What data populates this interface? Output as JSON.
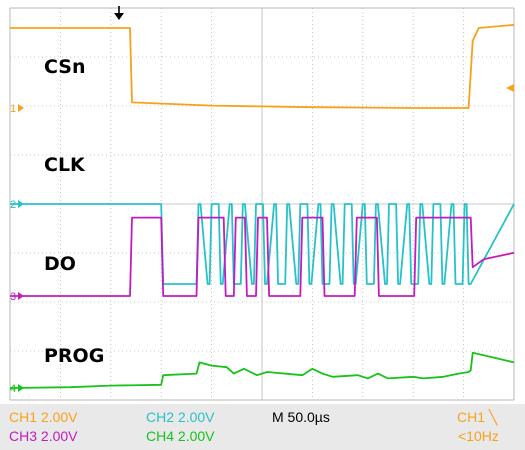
{
  "chart_data": {
    "type": "line",
    "title": "",
    "xlabel": "",
    "ylabel": "",
    "time_per_div_us": 50,
    "grid": true,
    "legend": "none",
    "x_range_us": [
      0,
      500
    ],
    "x_unit": "us",
    "y_unit": "V",
    "series": [
      {
        "name": "CSn",
        "channel": 1,
        "color": "#f7a21b",
        "volts_per_div": 2.0,
        "marker": "1",
        "x": [
          0,
          119,
          121,
          200,
          300,
          400,
          455,
          459,
          465,
          500
        ],
        "y": [
          5.0,
          5.0,
          0.35,
          0.15,
          0.05,
          0.0,
          0.0,
          4.2,
          5.0,
          5.2
        ]
      },
      {
        "name": "CLK",
        "channel": 2,
        "color": "#27c2c9",
        "volts_per_div": 2.0,
        "marker": "2",
        "x": [
          0,
          150,
          152,
          185,
          187,
          189,
          196,
          198,
          200,
          207,
          209,
          211,
          218,
          220,
          222,
          229,
          231,
          233,
          240,
          242,
          244,
          251,
          253,
          255,
          262,
          264,
          266,
          273,
          275,
          277,
          284,
          286,
          288,
          295,
          297,
          299,
          306,
          308,
          310,
          317,
          319,
          321,
          328,
          330,
          332,
          339,
          341,
          343,
          350,
          352,
          354,
          361,
          363,
          365,
          372,
          374,
          376,
          383,
          385,
          387,
          394,
          396,
          398,
          405,
          407,
          409,
          416,
          418,
          420,
          427,
          429,
          431,
          438,
          440,
          442,
          449,
          451,
          453,
          455,
          457,
          500
        ],
        "y": [
          0,
          0,
          -5,
          -5,
          0,
          0,
          -5,
          -5,
          0,
          0,
          -5,
          -5,
          0,
          0,
          -5,
          -5,
          0,
          0,
          -5,
          -5,
          0,
          0,
          -5,
          -5,
          0,
          0,
          -5,
          -5,
          0,
          0,
          -5,
          -5,
          0,
          0,
          -5,
          -5,
          0,
          0,
          -5,
          -5,
          0,
          0,
          -5,
          -5,
          0,
          0,
          -5,
          -5,
          0,
          0,
          -5,
          -5,
          0,
          0,
          -5,
          -5,
          0,
          0,
          -5,
          -5,
          0,
          0,
          -5,
          -5,
          0,
          0,
          -5,
          -5,
          0,
          0,
          -5,
          -5,
          0,
          0,
          -5,
          -5,
          0,
          0,
          -5,
          -5,
          0
        ]
      },
      {
        "name": "DO",
        "channel": 3,
        "color": "#c21cc0",
        "volts_per_div": 2.0,
        "marker": "3",
        "x": [
          0,
          119,
          121,
          150,
          152,
          185,
          187,
          212,
          214,
          222,
          224,
          233,
          235,
          244,
          246,
          255,
          257,
          288,
          290,
          310,
          312,
          342,
          344,
          364,
          366,
          401,
          403,
          457,
          459,
          470,
          500
        ],
        "y": [
          0,
          0,
          4.9,
          4.9,
          0,
          0,
          4.9,
          4.9,
          0,
          0,
          4.9,
          4.9,
          0,
          0,
          4.9,
          4.9,
          0,
          0,
          4.9,
          4.9,
          0,
          0,
          4.9,
          4.9,
          0,
          0,
          4.9,
          4.9,
          1.8,
          2.3,
          2.7
        ]
      },
      {
        "name": "PROG",
        "channel": 4,
        "color": "#17c31c",
        "volts_per_div": 2.0,
        "marker": "4",
        "x": [
          0,
          60,
          100,
          150,
          152,
          185,
          188,
          200,
          215,
          222,
          232,
          245,
          255,
          290,
          300,
          310,
          320,
          345,
          355,
          365,
          375,
          400,
          410,
          430,
          445,
          455,
          457,
          459,
          480,
          500
        ],
        "y": [
          0,
          0.05,
          0.15,
          0.2,
          0.8,
          0.9,
          1.6,
          1.4,
          1.3,
          0.9,
          1.2,
          0.8,
          1.0,
          0.8,
          1.2,
          0.9,
          0.7,
          0.8,
          0.6,
          0.9,
          0.6,
          0.7,
          0.6,
          0.7,
          0.9,
          1.0,
          1.1,
          2.2,
          1.9,
          1.6
        ]
      }
    ]
  },
  "status": {
    "ch1": "CH1",
    "ch1_scale": "2.00V",
    "ch2": "CH2",
    "ch2_scale": "2.00V",
    "ch3": "CH3",
    "ch3_scale": "2.00V",
    "ch4": "CH4",
    "ch4_scale": "2.00V",
    "timebase": "M 50.0µs",
    "trigger_source": "CH1",
    "trigger_edge_glyph": "╲",
    "trigger_freq": "<10Hz"
  },
  "colors": {
    "ch1": "#f7a21b",
    "ch2": "#27c2c9",
    "ch3": "#c21cc0",
    "ch4": "#17c31c",
    "grid": "#b8b8b8",
    "status_bar": "#e9e9e9"
  }
}
